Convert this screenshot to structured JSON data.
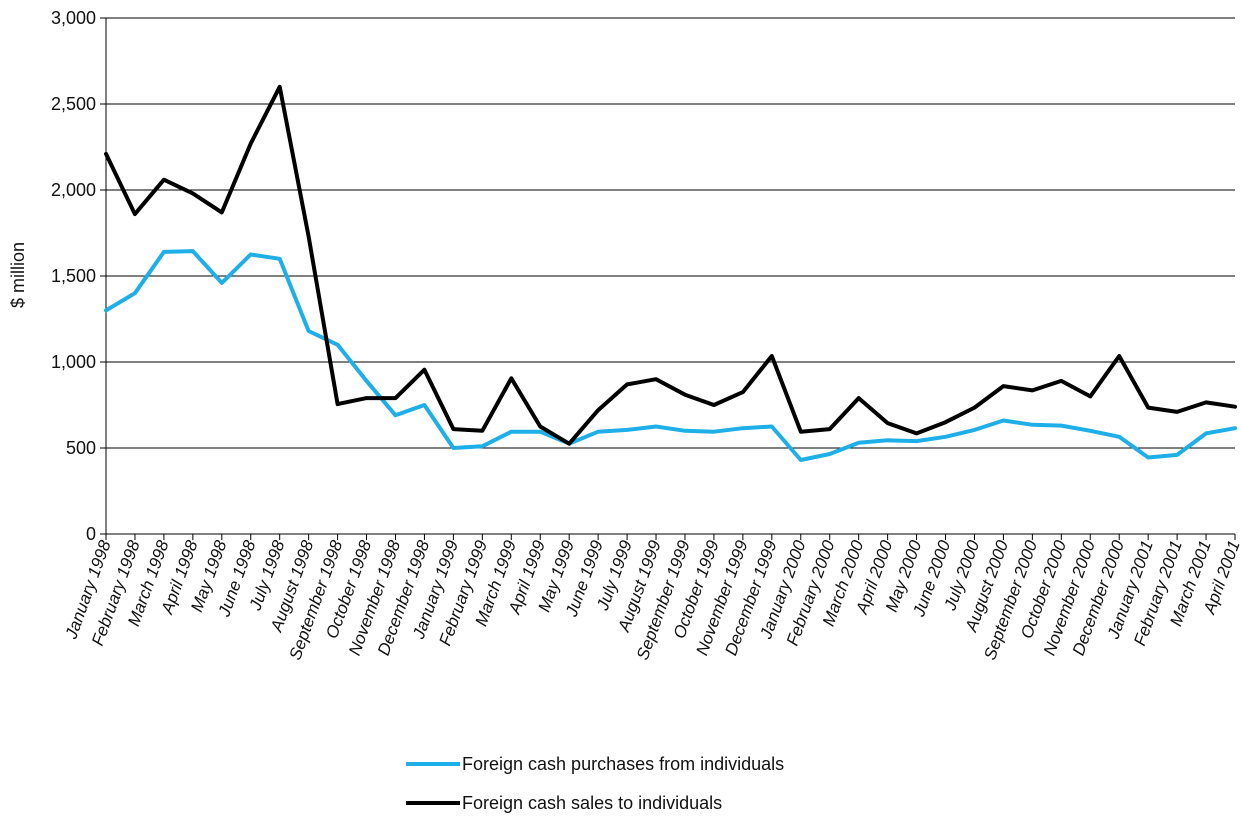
{
  "chart_data": {
    "type": "line",
    "ylabel": "$ million",
    "xlabel": "",
    "ylim": [
      0,
      3000
    ],
    "yticks": [
      0,
      500,
      1000,
      1500,
      2000,
      2500,
      3000
    ],
    "ytick_labels": [
      "0",
      "500",
      "1,000",
      "1,500",
      "2,000",
      "2,500",
      "3,000"
    ],
    "grid": "horizontal",
    "legend_position": "bottom",
    "categories": [
      "January 1998",
      "February 1998",
      "March 1998",
      "April 1998",
      "May 1998",
      "June 1998",
      "July 1998",
      "August 1998",
      "September 1998",
      "October 1998",
      "November 1998",
      "December 1998",
      "January 1999",
      "February 1999",
      "March 1999",
      "April 1999",
      "May 1999",
      "June 1999",
      "July 1999",
      "August 1999",
      "September 1999",
      "October 1999",
      "November 1999",
      "December 1999",
      "January 2000",
      "February 2000",
      "March 2000",
      "April 2000",
      "May 2000",
      "June 2000",
      "July 2000",
      "August 2000",
      "September 2000",
      "October 2000",
      "November 2000",
      "December 2000",
      "January 2001",
      "February 2001",
      "March 2001",
      "April 2001"
    ],
    "series": [
      {
        "name": "Foreign cash purchases from individuals",
        "color": "#1eaee8",
        "values": [
          1300,
          1400,
          1640,
          1645,
          1460,
          1625,
          1600,
          1180,
          1100,
          890,
          690,
          750,
          500,
          510,
          595,
          595,
          525,
          595,
          605,
          625,
          600,
          595,
          615,
          625,
          430,
          465,
          530,
          545,
          540,
          565,
          605,
          660,
          635,
          630,
          600,
          565,
          445,
          460,
          585,
          615
        ]
      },
      {
        "name": "Foreign cash sales to individuals",
        "color": "#000000",
        "values": [
          2210,
          1860,
          2060,
          1980,
          1870,
          2270,
          2600,
          1730,
          755,
          790,
          790,
          955,
          610,
          600,
          905,
          625,
          525,
          720,
          870,
          900,
          810,
          750,
          825,
          1035,
          595,
          610,
          790,
          645,
          585,
          650,
          735,
          860,
          835,
          890,
          800,
          1035,
          735,
          710,
          765,
          740
        ]
      }
    ]
  }
}
